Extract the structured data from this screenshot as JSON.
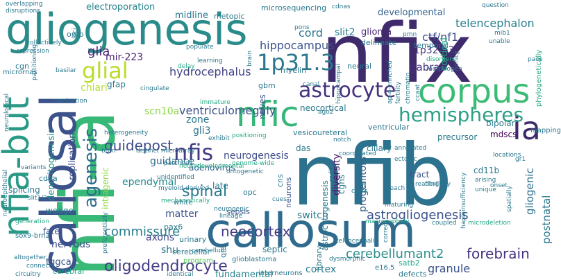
{
  "palette": [
    "#440154",
    "#414487",
    "#2a788e",
    "#22a884",
    "#7ad151",
    "#fde725"
  ],
  "words": [
    {
      "text": "nfib",
      "color": "#2c718e"
    },
    {
      "text": "nfix",
      "color": "#3f2a6b"
    },
    {
      "text": "nfi-a",
      "color": "#38b977"
    },
    {
      "text": "callosum",
      "color": "#2f6b8e"
    },
    {
      "text": "gliogenesis",
      "color": "#2a8c8a"
    },
    {
      "text": "callosal",
      "color": "#3b528b"
    },
    {
      "text": "nfia-but",
      "color": "#2a9a87"
    },
    {
      "text": "corpus",
      "color": "#3bbb75"
    },
    {
      "text": "nfic",
      "color": "#35b779"
    },
    {
      "text": "ia",
      "color": "#3f2a6b"
    },
    {
      "text": "hemispheres",
      "color": "#2d9f86"
    },
    {
      "text": "astrocyte",
      "color": "#46327e"
    },
    {
      "text": "1p31.3",
      "color": "#2a788e"
    },
    {
      "text": "glial",
      "color": "#b8de29"
    },
    {
      "text": "agenesis",
      "color": "#2e6e8e"
    },
    {
      "text": "nfis",
      "color": "#443a83"
    },
    {
      "text": "guidepost",
      "color": "#3e4a89"
    },
    {
      "text": "oligodendrocyte",
      "color": "#433e85"
    },
    {
      "text": "spinal",
      "color": "#2a788e"
    },
    {
      "text": "cerebellumant2",
      "color": "#2c8f8c"
    },
    {
      "text": "neocortex",
      "color": "#443b84"
    },
    {
      "text": "astrogliogenesis",
      "color": "#3b528b"
    },
    {
      "text": "commissure",
      "color": "#277f8e"
    },
    {
      "text": "forebrain",
      "color": "#46317e"
    },
    {
      "text": "glia",
      "color": "#482475"
    },
    {
      "text": "ctf/nf1",
      "color": "#3e4c8a"
    },
    {
      "text": "slit2",
      "color": "#287d8e"
    },
    {
      "text": "cord",
      "color": "#2a788e"
    },
    {
      "text": "hydrocephalus",
      "color": "#414487"
    },
    {
      "text": "hippocampus",
      "color": "#3b528b"
    },
    {
      "text": "1p32-p31",
      "color": "#46337f"
    },
    {
      "text": "telencephalon",
      "color": "#27808e"
    },
    {
      "text": "ventriculomegaly",
      "color": "#3c508b"
    },
    {
      "text": "gabra6",
      "color": "#46307e"
    },
    {
      "text": "mir-223",
      "color": "#481f70"
    },
    {
      "text": "gli3",
      "color": "#2c738e"
    },
    {
      "text": "scn10a",
      "color": "#8bd646"
    },
    {
      "text": "neurogenesis",
      "color": "#3e4c8a"
    },
    {
      "text": "guidance",
      "color": "#2f6c8e"
    },
    {
      "text": "ependymal",
      "color": "#23898e"
    },
    {
      "text": "matter",
      "color": "#3b528b"
    },
    {
      "text": "axons",
      "color": "#3f4788"
    },
    {
      "text": "switch",
      "color": "#2a788e"
    },
    {
      "text": "diversity",
      "color": "#481769"
    },
    {
      "text": "progenitors",
      "color": "#35608d"
    },
    {
      "text": "postnatal",
      "color": "#2a788e"
    },
    {
      "text": "gliogenic",
      "color": "#2d708e"
    },
    {
      "text": "granule",
      "color": "#3b528b"
    },
    {
      "text": "cortex",
      "color": "#2a788e"
    },
    {
      "text": "fundamental",
      "color": "#25848e"
    },
    {
      "text": "nervous",
      "color": "#3c4f8a"
    },
    {
      "text": "wedge",
      "color": "#24878e"
    },
    {
      "text": "tggca",
      "color": "#3b518b"
    },
    {
      "text": "shu",
      "color": "#2a788e"
    },
    {
      "text": "zone",
      "color": "#2a788e"
    },
    {
      "text": "dendritogenesis",
      "color": "#21918c"
    },
    {
      "text": "replication",
      "color": "#3e4a89"
    },
    {
      "text": "midline",
      "color": "#2a788e"
    },
    {
      "text": "electroporation",
      "color": "#25858e"
    },
    {
      "text": "glioma",
      "color": "#482878"
    },
    {
      "text": "developmental",
      "color": "#33638d"
    },
    {
      "text": "cortical",
      "color": "#22a884"
    },
    {
      "text": "chiari",
      "color": "#b5de2b"
    },
    {
      "text": "gfap",
      "color": "#2a788e"
    },
    {
      "text": "neves",
      "color": "#3b528b"
    },
    {
      "text": "neocortical",
      "color": "#2a788e"
    },
    {
      "text": "bipolar",
      "color": "#2a788e"
    },
    {
      "text": "precursor",
      "color": "#2a788e"
    },
    {
      "text": "mdscs",
      "color": "#440154"
    },
    {
      "text": "ventricular",
      "color": "#2a788e"
    },
    {
      "text": "cd11b",
      "color": "#2a788e"
    },
    {
      "text": "tract",
      "color": "#3b528b"
    },
    {
      "text": "late",
      "color": "#2a788e"
    },
    {
      "text": "cerebellar",
      "color": "#2a788e"
    },
    {
      "text": "intragenic",
      "color": "#8fd744"
    },
    {
      "text": "adenovirus",
      "color": "#33638d"
    },
    {
      "text": "das",
      "color": "#2a788e"
    },
    {
      "text": "ciliary",
      "color": "#2a788e"
    },
    {
      "text": "vesicoureteral",
      "color": "#2a788e"
    },
    {
      "text": "cgns",
      "color": "#2a788e"
    },
    {
      "text": "astrocytogenesis",
      "color": "#2a788e"
    },
    {
      "text": "septic",
      "color": "#2a788e"
    },
    {
      "text": "sepsis",
      "color": "#3b528b"
    },
    {
      "text": "library",
      "color": "#2a788e"
    },
    {
      "text": "neurons",
      "color": "#3b528b"
    },
    {
      "text": "opc",
      "color": "#2a788e"
    },
    {
      "text": "cns",
      "color": "#2a788e"
    },
    {
      "text": "metopic",
      "color": "#2a788e"
    },
    {
      "text": "microsequencing",
      "color": "#2a788e"
    },
    {
      "text": "delineate",
      "color": "#2a788e"
    },
    {
      "text": "temporal",
      "color": "#2a788e"
    },
    {
      "text": "neural",
      "color": "#2a788e"
    },
    {
      "text": "myelin",
      "color": "#2a788e"
    },
    {
      "text": "gbm",
      "color": "#2a788e"
    },
    {
      "text": "pax6",
      "color": "#2a788e"
    },
    {
      "text": "urinary",
      "color": "#2a788e"
    },
    {
      "text": "qrs",
      "color": "#2a788e"
    },
    {
      "text": "program",
      "color": "#5ec962"
    },
    {
      "text": "cerebral",
      "color": "#22a884"
    },
    {
      "text": "satb2",
      "color": "#22a884"
    },
    {
      "text": "defects",
      "color": "#2a788e"
    },
    {
      "text": "e16.5",
      "color": "#2a788e"
    },
    {
      "text": "glioblastoma",
      "color": "#2a788e"
    },
    {
      "text": "interneurons",
      "color": "#2a788e"
    },
    {
      "text": "splicing",
      "color": "#2a788e"
    },
    {
      "text": "cdna",
      "color": "#2a788e"
    },
    {
      "text": "omp",
      "color": "#2a788e"
    },
    {
      "text": "cgn",
      "color": "#2a788e"
    },
    {
      "text": "micrornas",
      "color": "#2a788e"
    },
    {
      "text": "fate",
      "color": "#3b528b"
    },
    {
      "text": "sox9-brn2",
      "color": "#2a788e"
    },
    {
      "text": "white",
      "color": "#2a788e"
    },
    {
      "text": "mapping",
      "color": "#2a788e"
    },
    {
      "text": "phylogenetically",
      "color": "#22a884"
    },
    {
      "text": "mib1",
      "color": "#2a788e"
    },
    {
      "text": "question",
      "color": "#2a788e"
    },
    {
      "text": "pace",
      "color": "#2a788e"
    },
    {
      "text": "unable",
      "color": "#2a788e"
    },
    {
      "text": "chick",
      "color": "#2a788e"
    },
    {
      "text": "morphogen",
      "color": "#2a788e"
    },
    {
      "text": "disorders",
      "color": "#22a884"
    },
    {
      "text": "onset",
      "color": "#2a788e"
    },
    {
      "text": "spatially",
      "color": "#2a788e"
    },
    {
      "text": "unique",
      "color": "#2a788e"
    },
    {
      "text": "gr1",
      "color": "#2a788e"
    },
    {
      "text": "locations",
      "color": "#2a788e"
    },
    {
      "text": "arising",
      "color": "#2a788e"
    },
    {
      "text": "haploinsufficiency",
      "color": "#2a788e"
    },
    {
      "text": "fibrillary",
      "color": "#2a788e"
    },
    {
      "text": "coupled",
      "color": "#2a788e"
    },
    {
      "text": "microdeletion",
      "color": "#22a884"
    },
    {
      "text": "correct",
      "color": "#2a788e"
    },
    {
      "text": "maturing",
      "color": "#2a788e"
    },
    {
      "text": "reading",
      "color": "#2a788e"
    },
    {
      "text": "reach",
      "color": "#2a788e"
    },
    {
      "text": "macrocephaly",
      "color": "#22a884"
    },
    {
      "text": "clones",
      "color": "#2a788e"
    },
    {
      "text": "cross",
      "color": "#2a788e"
    },
    {
      "text": "csb",
      "color": "#2a788e"
    },
    {
      "text": "cues",
      "color": "#2a788e"
    },
    {
      "text": "dysmorphic",
      "color": "#2a788e"
    },
    {
      "text": "telencephalic",
      "color": "#2a788e"
    },
    {
      "text": "radial",
      "color": "#2a788e"
    },
    {
      "text": "ectopic",
      "color": "#2a788e"
    },
    {
      "text": "annotated",
      "color": "#2a788e"
    },
    {
      "text": "coordinated",
      "color": "#2a788e"
    },
    {
      "text": "ago2",
      "color": "#2a788e"
    },
    {
      "text": "notch",
      "color": "#2a788e"
    },
    {
      "text": "positioning",
      "color": "#22a884"
    },
    {
      "text": "exhibit",
      "color": "#2a788e"
    },
    {
      "text": "immature",
      "color": "#22a884"
    },
    {
      "text": "cingulate",
      "color": "#2a788e"
    },
    {
      "text": "heterogeneity",
      "color": "#2a788e"
    },
    {
      "text": "born",
      "color": "#2a788e"
    },
    {
      "text": "distinct",
      "color": "#2a788e"
    },
    {
      "text": "microarray",
      "color": "#2a788e"
    },
    {
      "text": "patched1",
      "color": "#2a788e"
    },
    {
      "text": "genome-wide",
      "color": "#22a884"
    },
    {
      "text": "ontogenetic",
      "color": "#2a788e"
    },
    {
      "text": "neurodevelopmental",
      "color": "#22a884"
    },
    {
      "text": "unidentified",
      "color": "#2a788e"
    },
    {
      "text": "myeloid-derived",
      "color": "#2a788e"
    },
    {
      "text": "neurogenic",
      "color": "#2a788e"
    },
    {
      "text": "lineage",
      "color": "#2a788e"
    },
    {
      "text": "mechanistically",
      "color": "#22a884"
    },
    {
      "text": "cerebellum",
      "color": "#2a788e"
    },
    {
      "text": "identical",
      "color": "#2a788e"
    },
    {
      "text": "preferentially",
      "color": "#2a788e"
    },
    {
      "text": "altogether",
      "color": "#2a788e"
    },
    {
      "text": "circuitry",
      "color": "#2a788e"
    },
    {
      "text": "connects",
      "color": "#2a788e"
    },
    {
      "text": "generation",
      "color": "#22a884"
    },
    {
      "text": "slit1/2",
      "color": "#2a788e"
    },
    {
      "text": "neuroepithelial",
      "color": "#2a788e"
    },
    {
      "text": "variants",
      "color": "#2a788e"
    },
    {
      "text": "neurological",
      "color": "#2a788e"
    },
    {
      "text": "conduction",
      "color": "#2a788e"
    },
    {
      "text": "basilar",
      "color": "#2a788e"
    },
    {
      "text": "repression",
      "color": "#2a788e"
    },
    {
      "text": "partitioning",
      "color": "#2a788e"
    },
    {
      "text": "overlapping",
      "color": "#2a788e"
    },
    {
      "text": "disruptions",
      "color": "#2a788e"
    },
    {
      "text": "loci",
      "color": "#2a788e"
    },
    {
      "text": "collectively",
      "color": "#2a788e"
    },
    {
      "text": "populate",
      "color": "#2a788e"
    },
    {
      "text": "learning",
      "color": "#2a788e"
    },
    {
      "text": "delay",
      "color": "#22a884"
    },
    {
      "text": "brain",
      "color": "#2a788e"
    },
    {
      "text": "cdnas",
      "color": "#2a788e"
    },
    {
      "text": "pons",
      "color": "#2a788e"
    },
    {
      "text": "pmn",
      "color": "#2a788e"
    },
    {
      "text": "canal",
      "color": "#2a788e"
    },
    {
      "text": "hippocampal",
      "color": "#2a788e"
    },
    {
      "text": "ap-4-enriched",
      "color": "#2a788e"
    },
    {
      "text": "fertility",
      "color": "#2a788e"
    },
    {
      "text": "chromatin",
      "color": "#2a788e"
    },
    {
      "text": "ccaat",
      "color": "#2a788e"
    }
  ]
}
